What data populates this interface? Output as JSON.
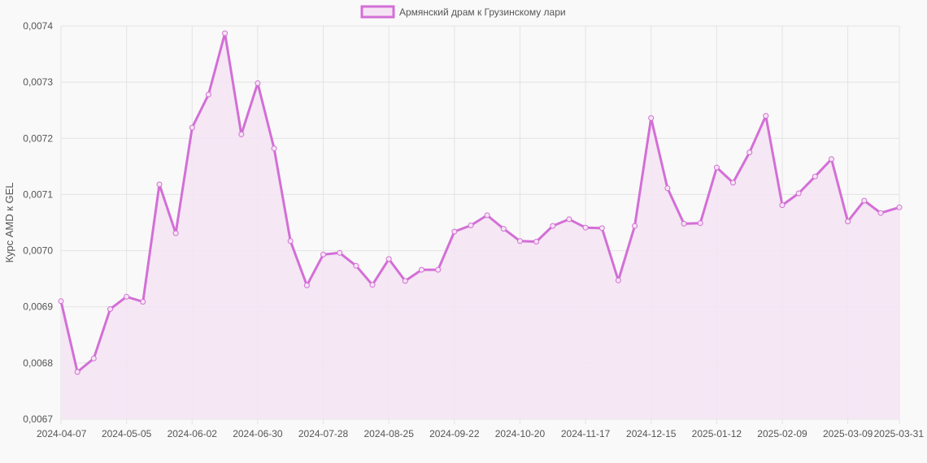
{
  "chart_data": {
    "type": "line",
    "title": "",
    "xlabel": "",
    "ylabel": "Курс AMD к GEL",
    "ylim": [
      0.0067,
      0.0074
    ],
    "y_ticks": [
      {
        "value": 0.0067,
        "label": "0,0067"
      },
      {
        "value": 0.0068,
        "label": "0,0068"
      },
      {
        "value": 0.0069,
        "label": "0,0069"
      },
      {
        "value": 0.007,
        "label": "0,0070"
      },
      {
        "value": 0.0071,
        "label": "0,0071"
      },
      {
        "value": 0.0072,
        "label": "0,0072"
      },
      {
        "value": 0.0073,
        "label": "0,0073"
      },
      {
        "value": 0.0074,
        "label": "0,0074"
      }
    ],
    "x_tick_labels": [
      "2024-04-07",
      "2024-05-05",
      "2024-06-02",
      "2024-06-30",
      "2024-07-28",
      "2024-08-25",
      "2024-09-22",
      "2024-10-20",
      "2024-11-17",
      "2024-12-15",
      "2025-01-12",
      "2025-02-09",
      "2025-03-09",
      "2025-03-31"
    ],
    "x": [
      "2024-04-07",
      "2024-04-14",
      "2024-04-21",
      "2024-04-28",
      "2024-05-05",
      "2024-05-12",
      "2024-05-19",
      "2024-05-26",
      "2024-06-02",
      "2024-06-09",
      "2024-06-16",
      "2024-06-23",
      "2024-06-30",
      "2024-07-07",
      "2024-07-14",
      "2024-07-21",
      "2024-07-28",
      "2024-08-04",
      "2024-08-11",
      "2024-08-18",
      "2024-08-25",
      "2024-09-01",
      "2024-09-08",
      "2024-09-15",
      "2024-09-22",
      "2024-09-29",
      "2024-10-06",
      "2024-10-13",
      "2024-10-20",
      "2024-10-27",
      "2024-11-03",
      "2024-11-10",
      "2024-11-17",
      "2024-11-24",
      "2024-12-01",
      "2024-12-08",
      "2024-12-15",
      "2024-12-22",
      "2024-12-29",
      "2025-01-05",
      "2025-01-12",
      "2025-01-19",
      "2025-01-26",
      "2025-02-02",
      "2025-02-09",
      "2025-02-16",
      "2025-02-23",
      "2025-03-02",
      "2025-03-09",
      "2025-03-16",
      "2025-03-23",
      "2025-03-31"
    ],
    "series": [
      {
        "name": "Армянский драм к Грузинскому лари",
        "color": "#d36fd6",
        "fill": "#f5e4f3",
        "values": [
          0.00691,
          0.006784,
          0.006808,
          0.006896,
          0.006918,
          0.006909,
          0.007118,
          0.007031,
          0.007219,
          0.007278,
          0.007387,
          0.007207,
          0.007298,
          0.007182,
          0.007017,
          0.006938,
          0.006993,
          0.006996,
          0.006973,
          0.006939,
          0.006985,
          0.006946,
          0.006966,
          0.006966,
          0.007034,
          0.007045,
          0.007063,
          0.007039,
          0.007017,
          0.007016,
          0.007044,
          0.007056,
          0.007041,
          0.00704,
          0.006947,
          0.007044,
          0.007236,
          0.007111,
          0.007048,
          0.007049,
          0.007148,
          0.007121,
          0.007175,
          0.00724,
          0.007081,
          0.007102,
          0.007132,
          0.007163,
          0.007052,
          0.007089,
          0.007067,
          0.007077
        ]
      }
    ],
    "legend_position": "top-center",
    "grid": true
  }
}
